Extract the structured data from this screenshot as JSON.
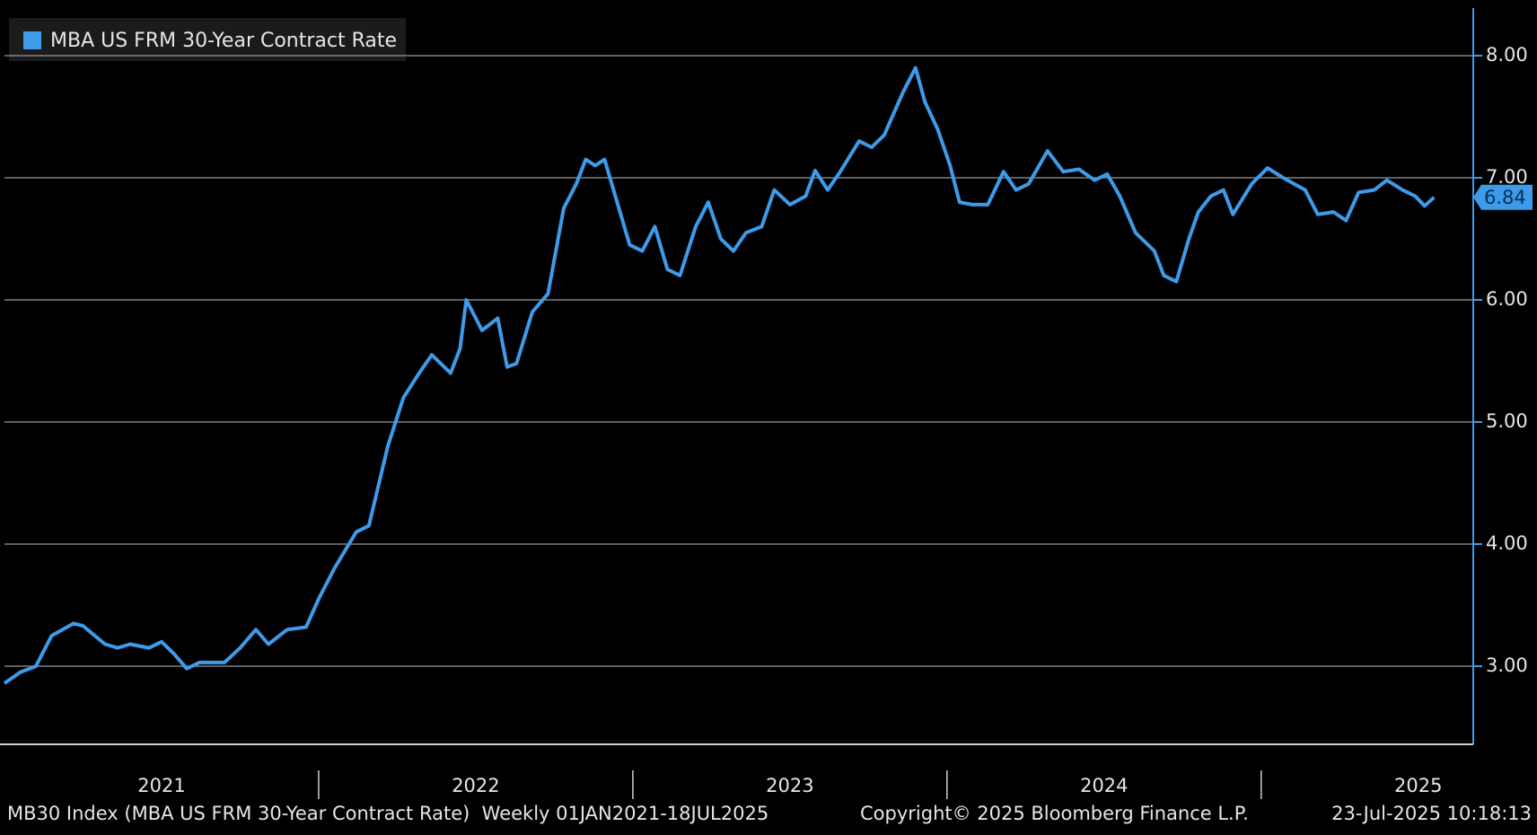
{
  "chart_data": {
    "type": "line",
    "legend": "MBA US FRM 30-Year Contract Rate",
    "footer_left": "MB30 Index (MBA US FRM 30-Year Contract Rate)  Weekly 01JAN2021-18JUL2025",
    "footer_center": "Copyright© 2025 Bloomberg Finance L.P.",
    "footer_right": "23-Jul-2025 10:18:13",
    "x": [
      2021.0,
      2021.05,
      2021.1,
      2021.15,
      2021.22,
      2021.25,
      2021.32,
      2021.36,
      2021.4,
      2021.46,
      2021.5,
      2021.54,
      2021.58,
      2021.62,
      2021.7,
      2021.75,
      2021.8,
      2021.84,
      2021.9,
      2021.96,
      2022.0,
      2022.05,
      2022.12,
      2022.16,
      2022.22,
      2022.27,
      2022.32,
      2022.36,
      2022.42,
      2022.45,
      2022.47,
      2022.52,
      2022.57,
      2022.6,
      2022.63,
      2022.68,
      2022.73,
      2022.78,
      2022.82,
      2022.85,
      2022.88,
      2022.91,
      2022.95,
      2022.99,
      2023.03,
      2023.07,
      2023.11,
      2023.15,
      2023.2,
      2023.24,
      2023.28,
      2023.32,
      2023.36,
      2023.41,
      2023.45,
      2023.5,
      2023.55,
      2023.58,
      2023.62,
      2023.66,
      2023.72,
      2023.76,
      2023.8,
      2023.86,
      2023.9,
      2023.93,
      2023.97,
      2024.01,
      2024.04,
      2024.08,
      2024.13,
      2024.18,
      2024.22,
      2024.26,
      2024.32,
      2024.37,
      2024.42,
      2024.47,
      2024.51,
      2024.55,
      2024.6,
      2024.66,
      2024.69,
      2024.73,
      2024.77,
      2024.8,
      2024.84,
      2024.88,
      2024.91,
      2024.97,
      2025.02,
      2025.07,
      2025.14,
      2025.18,
      2025.23,
      2025.27,
      2025.31,
      2025.36,
      2025.4,
      2025.45,
      2025.49,
      2025.52,
      2025.55
    ],
    "series": [
      {
        "name": "MBA US FRM 30-Year Contract Rate",
        "color": "#3d9be9",
        "axis": "y",
        "values": [
          2.86,
          2.95,
          3.0,
          3.25,
          3.35,
          3.33,
          3.18,
          3.15,
          3.18,
          3.15,
          3.2,
          3.1,
          2.98,
          3.03,
          3.03,
          3.15,
          3.3,
          3.18,
          3.3,
          3.32,
          3.55,
          3.8,
          4.1,
          4.15,
          4.8,
          5.2,
          5.4,
          5.55,
          5.4,
          5.6,
          6.0,
          5.75,
          5.85,
          5.45,
          5.48,
          5.9,
          6.05,
          6.75,
          6.95,
          7.15,
          7.1,
          7.15,
          6.8,
          6.45,
          6.4,
          6.6,
          6.25,
          6.2,
          6.6,
          6.8,
          6.5,
          6.4,
          6.55,
          6.6,
          6.9,
          6.78,
          6.85,
          7.06,
          6.9,
          7.05,
          7.3,
          7.25,
          7.35,
          7.7,
          7.9,
          7.62,
          7.4,
          7.1,
          6.8,
          6.78,
          6.78,
          7.05,
          6.9,
          6.95,
          7.22,
          7.05,
          7.07,
          6.98,
          7.03,
          6.85,
          6.55,
          6.4,
          6.2,
          6.15,
          6.5,
          6.72,
          6.85,
          6.9,
          6.7,
          6.95,
          7.08,
          7.0,
          6.9,
          6.7,
          6.72,
          6.65,
          6.88,
          6.9,
          6.98,
          6.9,
          6.85,
          6.77,
          6.84
        ]
      }
    ],
    "xlim": [
      2021,
      2025.675
    ],
    "xticks": [
      {
        "value": 2021.5,
        "label": "2021"
      },
      {
        "value": 2022.5,
        "label": "2022"
      },
      {
        "value": 2023.5,
        "label": "2023"
      },
      {
        "value": 2024.5,
        "label": "2024"
      },
      {
        "value": 2025.5,
        "label": "2025"
      }
    ],
    "ylim": [
      2.36,
      8.39
    ],
    "yticks": [
      {
        "value": 3,
        "label": "3.00"
      },
      {
        "value": 4,
        "label": "4.00"
      },
      {
        "value": 5,
        "label": "5.00"
      },
      {
        "value": 6,
        "label": "6.00"
      },
      {
        "value": 7,
        "label": "7.00"
      },
      {
        "value": 8,
        "label": "8.00"
      }
    ],
    "grid": true,
    "legend_position": "top-left"
  }
}
